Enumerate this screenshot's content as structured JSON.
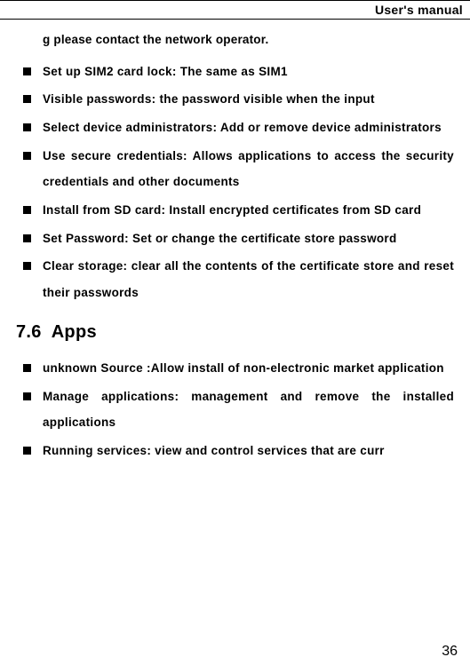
{
  "header": {
    "title": "User's manual"
  },
  "continuation_text": "g please contact the network operator.",
  "bullets_top": [
    "Set up SIM2 card lock: The same as SIM1",
    "Visible passwords: the password visible when the input",
    "Select device administrators: Add or remove device administrators",
    "Use secure credentials: Allows applications to access the security credentials and other documents",
    "Install from SD card: Install encrypted certificates from SD card",
    "Set Password: Set or change the certificate store password",
    "Clear storage: clear all the contents of the certificate store and reset their passwords"
  ],
  "section": {
    "number": "7.6",
    "title": "Apps"
  },
  "bullets_bottom": [
    "unknown Source :Allow install of non-electronic market application",
    "Manage applications: management and remove the installed applications",
    "Running services: view and control services that are curr"
  ],
  "page_number": "36"
}
